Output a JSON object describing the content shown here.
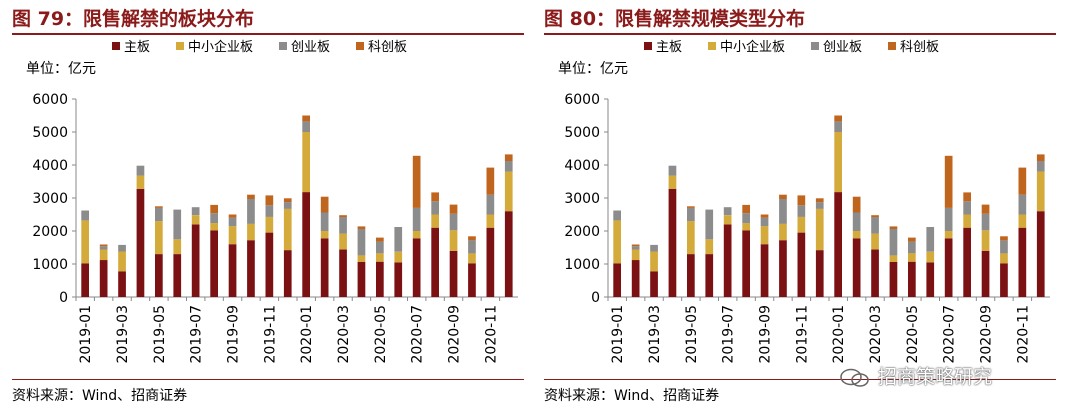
{
  "charts": [
    {
      "title": "图 79：限售解禁的板块分布",
      "source": "资料来源：Wind、招商证券"
    },
    {
      "title": "图 80：限售解禁规模类型分布",
      "source": "资料来源：Wind、招商证券"
    }
  ],
  "watermark": "招商策略研究",
  "chart_data": [
    {
      "type": "bar",
      "stacked": true,
      "title": "图 79：限售解禁的板块分布",
      "ylabel": "单位：亿元",
      "ylim": [
        0,
        6000
      ],
      "yticks": [
        0,
        1000,
        2000,
        3000,
        4000,
        5000,
        6000
      ],
      "categories": [
        "2019-01",
        "2019-02",
        "2019-03",
        "2019-04",
        "2019-05",
        "2019-06",
        "2019-07",
        "2019-08",
        "2019-09",
        "2019-10",
        "2019-11",
        "2019-12",
        "2020-01",
        "2020-02",
        "2020-03",
        "2020-04",
        "2020-05",
        "2020-06",
        "2020-07",
        "2020-08",
        "2020-09",
        "2020-10",
        "2020-11",
        "2020-12"
      ],
      "tick_labels": [
        "2019-01",
        "2019-03",
        "2019-05",
        "2019-07",
        "2019-09",
        "2019-11",
        "2020-01",
        "2020-03",
        "2020-05",
        "2020-07",
        "2020-09",
        "2020-11"
      ],
      "legend": [
        "主板",
        "中小企业板",
        "创业板",
        "科创板"
      ],
      "colors": [
        "#7b1113",
        "#d4aa3a",
        "#8c8c8c",
        "#c0651e"
      ],
      "series": [
        {
          "name": "主板",
          "values": [
            1020,
            1120,
            780,
            3280,
            1300,
            1300,
            2200,
            2020,
            1600,
            1720,
            1950,
            1420,
            3180,
            1780,
            1440,
            1060,
            1070,
            1050,
            1780,
            2100,
            1400,
            1020,
            2100,
            2600
          ]
        },
        {
          "name": "中小企业板",
          "values": [
            1300,
            320,
            600,
            400,
            1000,
            450,
            280,
            220,
            550,
            500,
            480,
            1250,
            1820,
            220,
            480,
            200,
            260,
            320,
            220,
            400,
            620,
            300,
            400,
            1200
          ]
        },
        {
          "name": "创业板",
          "values": [
            300,
            100,
            200,
            300,
            400,
            900,
            240,
            300,
            250,
            750,
            350,
            200,
            320,
            560,
            500,
            800,
            350,
            750,
            700,
            400,
            500,
            400,
            600,
            320
          ]
        },
        {
          "name": "科创板",
          "values": [
            0,
            50,
            0,
            0,
            50,
            0,
            0,
            250,
            100,
            130,
            300,
            120,
            180,
            480,
            60,
            80,
            120,
            0,
            1580,
            270,
            280,
            120,
            820,
            200
          ]
        }
      ]
    },
    {
      "type": "bar",
      "stacked": true,
      "title": "图 80：限售解禁规模类型分布",
      "ylabel": "单位：亿元",
      "ylim": [
        0,
        6000
      ],
      "yticks": [
        0,
        1000,
        2000,
        3000,
        4000,
        5000,
        6000
      ],
      "categories": [
        "2019-01",
        "2019-02",
        "2019-03",
        "2019-04",
        "2019-05",
        "2019-06",
        "2019-07",
        "2019-08",
        "2019-09",
        "2019-10",
        "2019-11",
        "2019-12",
        "2020-01",
        "2020-02",
        "2020-03",
        "2020-04",
        "2020-05",
        "2020-06",
        "2020-07",
        "2020-08",
        "2020-09",
        "2020-10",
        "2020-11",
        "2020-12"
      ],
      "tick_labels": [
        "2019-01",
        "2019-03",
        "2019-05",
        "2019-07",
        "2019-09",
        "2019-11",
        "2020-01",
        "2020-03",
        "2020-05",
        "2020-07",
        "2020-09",
        "2020-11"
      ],
      "legend": [
        "主板",
        "中小企业板",
        "创业板",
        "科创板"
      ],
      "colors": [
        "#7b1113",
        "#d4aa3a",
        "#8c8c8c",
        "#c0651e"
      ],
      "series": [
        {
          "name": "主板",
          "values": [
            1020,
            1120,
            780,
            3280,
            1300,
            1300,
            2200,
            2020,
            1600,
            1720,
            1950,
            1420,
            3180,
            1780,
            1440,
            1060,
            1070,
            1050,
            1780,
            2100,
            1400,
            1020,
            2100,
            2600
          ]
        },
        {
          "name": "中小企业板",
          "values": [
            1300,
            320,
            600,
            400,
            1000,
            450,
            280,
            220,
            550,
            500,
            480,
            1250,
            1820,
            220,
            480,
            200,
            260,
            320,
            220,
            400,
            620,
            300,
            400,
            1200
          ]
        },
        {
          "name": "创业板",
          "values": [
            300,
            100,
            200,
            300,
            400,
            900,
            240,
            300,
            250,
            750,
            350,
            200,
            320,
            560,
            500,
            800,
            350,
            750,
            700,
            400,
            500,
            400,
            600,
            320
          ]
        },
        {
          "name": "科创板",
          "values": [
            0,
            50,
            0,
            0,
            50,
            0,
            0,
            250,
            100,
            130,
            300,
            120,
            180,
            480,
            60,
            80,
            120,
            0,
            1580,
            270,
            280,
            120,
            820,
            200
          ]
        }
      ]
    }
  ]
}
